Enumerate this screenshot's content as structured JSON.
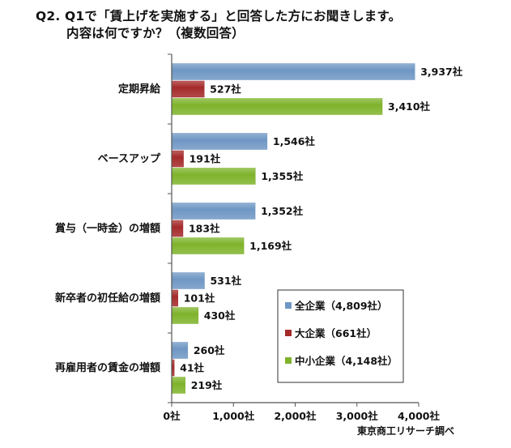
{
  "title": {
    "line1": "Q2. Q1で「賃上げを実施する」と回答した方にお聞きします。",
    "line2": "内容は何ですか？（複数回答）"
  },
  "source": "東京商工リサーチ調べ",
  "chart_data": {
    "type": "bar",
    "orientation": "horizontal",
    "categories": [
      "定期昇給",
      "ベースアップ",
      "賞与（一時金）の増額",
      "新卒者の初任給の増額",
      "再雇用者の賃金の増額"
    ],
    "series": [
      {
        "name": "全企業（4,809社）",
        "color": "#6f97c4",
        "values": [
          3937,
          1546,
          1352,
          531,
          260
        ],
        "labels": [
          "3,937社",
          "1,546社",
          "1,352社",
          "531社",
          "260社"
        ]
      },
      {
        "name": "大企業（661社）",
        "color": "#a52a2a",
        "values": [
          527,
          191,
          183,
          101,
          41
        ],
        "labels": [
          "527社",
          "191社",
          "183社",
          "101社",
          "41社"
        ]
      },
      {
        "name": "中小企業（4,148社）",
        "color": "#7fb32c",
        "values": [
          3410,
          1355,
          1169,
          430,
          219
        ],
        "labels": [
          "3,410社",
          "1,355社",
          "1,169社",
          "430社",
          "219社"
        ]
      }
    ],
    "xlim": [
      0,
      4000
    ],
    "xticks": [
      0,
      1000,
      2000,
      3000,
      4000
    ],
    "xtick_labels": [
      "0社",
      "1,000社",
      "2,000社",
      "3,000社",
      "4,000社"
    ],
    "legend_position": "lower-right",
    "grid": false
  }
}
